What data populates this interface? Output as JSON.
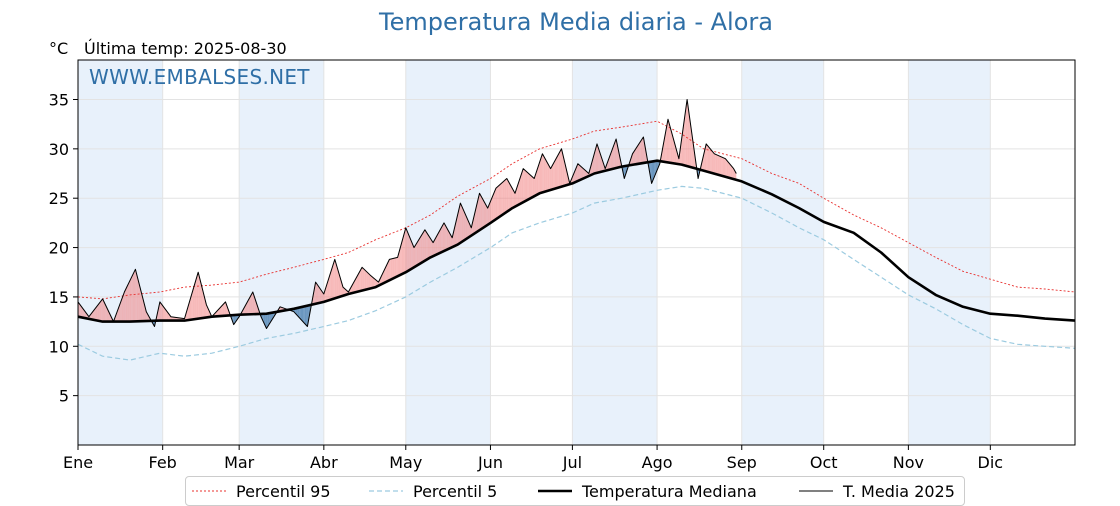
{
  "chart_data": {
    "type": "line",
    "title": "Temperatura Media diaria - Alora",
    "subtitle": "Última temp: 2025-08-30",
    "ylabel": "°C",
    "watermark": "WWW.EMBALSES.NET",
    "xlim": [
      1,
      366
    ],
    "ylim": [
      0,
      39
    ],
    "yticks": [
      5,
      10,
      15,
      20,
      25,
      30,
      35
    ],
    "month_ticks": [
      {
        "label": "Ene",
        "day": 1
      },
      {
        "label": "Feb",
        "day": 32
      },
      {
        "label": "Mar",
        "day": 60
      },
      {
        "label": "Abr",
        "day": 91
      },
      {
        "label": "May",
        "day": 121
      },
      {
        "label": "Jun",
        "day": 152
      },
      {
        "label": "Jul",
        "day": 182
      },
      {
        "label": "Ago",
        "day": 213
      },
      {
        "label": "Sep",
        "day": 244
      },
      {
        "label": "Oct",
        "day": 274
      },
      {
        "label": "Nov",
        "day": 305
      },
      {
        "label": "Dic",
        "day": 335
      }
    ],
    "grid": true,
    "legend_position": "bottom",
    "colors": {
      "p95": "#e8302e",
      "p5": "#9ccbe0",
      "median": "#000000",
      "current": "#000000",
      "above": "#f08080",
      "below": "#4a7fb0",
      "band": "#e8f1fb",
      "title": "#2f6fa6"
    },
    "series": [
      {
        "name": "Percentil 95",
        "key": "p95",
        "x": [
          1,
          10,
          20,
          31,
          40,
          50,
          60,
          70,
          80,
          91,
          100,
          110,
          121,
          130,
          140,
          152,
          160,
          170,
          182,
          190,
          200,
          213,
          222,
          230,
          244,
          255,
          265,
          274,
          285,
          295,
          305,
          315,
          325,
          335,
          345,
          355,
          366
        ],
        "y": [
          15.0,
          14.8,
          15.2,
          15.5,
          16.0,
          16.2,
          16.5,
          17.3,
          18.0,
          18.8,
          19.5,
          20.8,
          22.0,
          23.3,
          25.2,
          27.0,
          28.5,
          30.0,
          31.0,
          31.8,
          32.2,
          32.8,
          31.5,
          30.0,
          29.0,
          27.5,
          26.5,
          25.0,
          23.3,
          22.0,
          20.5,
          19.0,
          17.6,
          16.8,
          16.0,
          15.8,
          15.5
        ]
      },
      {
        "name": "Percentil 5",
        "key": "p5",
        "x": [
          1,
          10,
          20,
          31,
          40,
          50,
          60,
          70,
          80,
          91,
          100,
          110,
          121,
          130,
          140,
          152,
          160,
          170,
          182,
          190,
          200,
          213,
          222,
          230,
          244,
          255,
          265,
          274,
          285,
          295,
          305,
          315,
          325,
          335,
          345,
          355,
          366
        ],
        "y": [
          10.2,
          9.0,
          8.6,
          9.3,
          9.0,
          9.3,
          10.0,
          10.8,
          11.3,
          12.0,
          12.6,
          13.6,
          15.0,
          16.5,
          18.0,
          20.0,
          21.5,
          22.5,
          23.5,
          24.5,
          25.0,
          25.8,
          26.2,
          26.0,
          25.0,
          23.5,
          22.0,
          20.8,
          18.8,
          17.0,
          15.2,
          13.8,
          12.2,
          10.8,
          10.2,
          10.0,
          9.8
        ]
      },
      {
        "name": "Temperatura Mediana",
        "key": "median",
        "x": [
          1,
          10,
          20,
          31,
          40,
          50,
          60,
          70,
          80,
          91,
          100,
          110,
          121,
          130,
          140,
          152,
          160,
          170,
          182,
          190,
          200,
          213,
          222,
          230,
          244,
          255,
          265,
          274,
          285,
          295,
          305,
          315,
          325,
          335,
          345,
          355,
          366
        ],
        "y": [
          13.0,
          12.5,
          12.5,
          12.6,
          12.6,
          13.0,
          13.2,
          13.3,
          13.8,
          14.5,
          15.3,
          16.0,
          17.5,
          19.0,
          20.3,
          22.5,
          24.0,
          25.5,
          26.5,
          27.5,
          28.2,
          28.8,
          28.4,
          27.8,
          26.7,
          25.4,
          24.0,
          22.6,
          21.5,
          19.5,
          17.0,
          15.2,
          14.0,
          13.3,
          13.1,
          12.8,
          12.6
        ]
      },
      {
        "name": "T. Media 2025",
        "key": "current",
        "x": [
          1,
          5,
          10,
          14,
          18,
          22,
          26,
          29,
          31,
          35,
          40,
          45,
          48,
          50,
          55,
          58,
          60,
          65,
          68,
          70,
          75,
          80,
          85,
          88,
          91,
          95,
          98,
          100,
          105,
          108,
          111,
          115,
          118,
          121,
          124,
          128,
          131,
          135,
          138,
          141,
          145,
          148,
          151,
          154,
          158,
          161,
          164,
          168,
          171,
          174,
          178,
          181,
          184,
          188,
          191,
          194,
          198,
          201,
          204,
          208,
          211,
          214,
          217,
          221,
          224,
          228,
          231,
          234,
          238,
          241,
          242
        ],
        "y": [
          14.5,
          13.0,
          14.8,
          12.5,
          15.5,
          17.8,
          13.5,
          12.0,
          14.5,
          13.0,
          12.8,
          17.5,
          14.2,
          13.0,
          14.5,
          12.2,
          13.0,
          15.5,
          13.0,
          11.8,
          14.0,
          13.5,
          12.0,
          16.5,
          15.3,
          18.8,
          16.0,
          15.5,
          18.0,
          17.2,
          16.5,
          18.8,
          19.0,
          22.0,
          20.0,
          21.8,
          20.5,
          22.5,
          21.0,
          24.5,
          22.0,
          25.5,
          24.0,
          26.0,
          27.0,
          25.5,
          28.0,
          27.0,
          29.5,
          28.0,
          30.0,
          26.5,
          28.5,
          27.5,
          30.5,
          28.0,
          31.0,
          27.0,
          29.5,
          31.2,
          26.5,
          28.5,
          33.0,
          29.0,
          35.0,
          27.0,
          30.5,
          29.5,
          29.0,
          28.0,
          27.5
        ]
      }
    ]
  }
}
